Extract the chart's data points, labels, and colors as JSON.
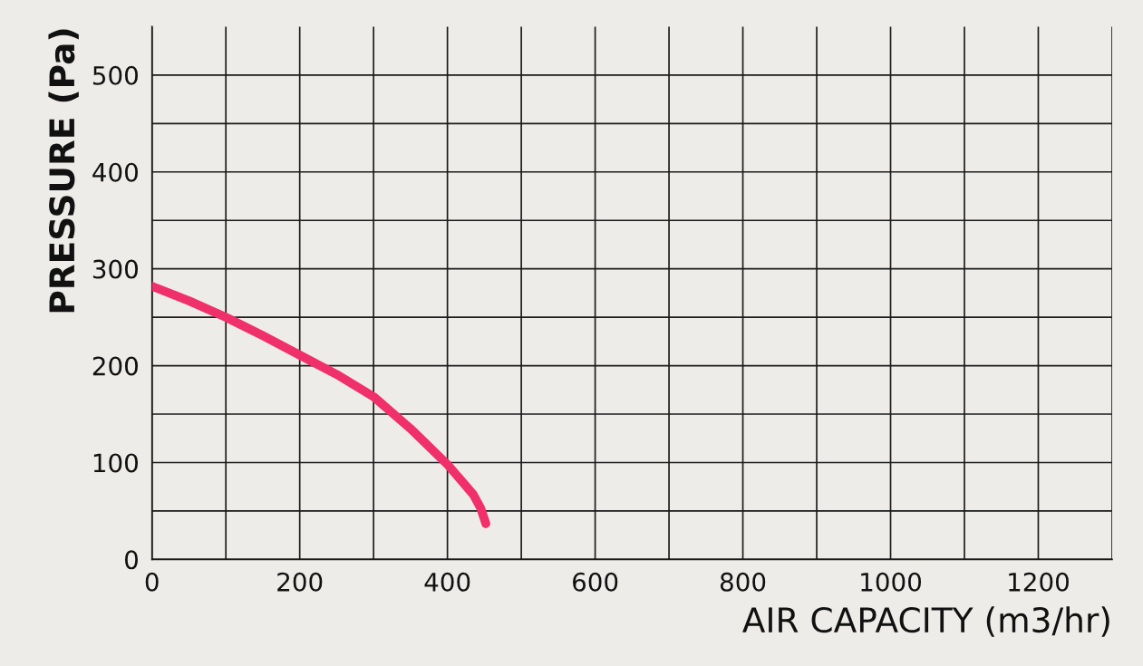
{
  "chart_data": {
    "type": "line",
    "xlabel": "AIR CAPACITY (m3/hr)",
    "ylabel": "PRESSURE (Pa)",
    "x": [
      0,
      50,
      100,
      150,
      200,
      250,
      300,
      350,
      400,
      435,
      445,
      452
    ],
    "series": [
      {
        "color": "#f0306a",
        "values": [
          282,
          267,
          250,
          231,
          211,
          191,
          168,
          135,
          98,
          67,
          53,
          37
        ]
      }
    ],
    "xlim": [
      0,
      1300
    ],
    "xticks": [
      0,
      {
        "value": 100,
        "label": null
      },
      200,
      {
        "value": 300,
        "label": null
      },
      400,
      {
        "value": 500,
        "label": null
      },
      600,
      {
        "value": 700,
        "label": null
      },
      800,
      {
        "value": 900,
        "label": null
      },
      1000,
      {
        "value": 1100,
        "label": null
      },
      1200,
      {
        "value": 1300,
        "label": null
      }
    ],
    "ylim": [
      0,
      550
    ],
    "yticks": [
      0,
      {
        "value": 50,
        "label": null
      },
      100,
      {
        "value": 150,
        "label": null
      },
      200,
      {
        "value": 250,
        "label": null
      },
      300,
      {
        "value": 350,
        "label": null
      },
      400,
      {
        "value": 450,
        "label": null
      },
      500
    ],
    "grid": true,
    "legend": false,
    "marker": "none",
    "line_style": "solid"
  }
}
